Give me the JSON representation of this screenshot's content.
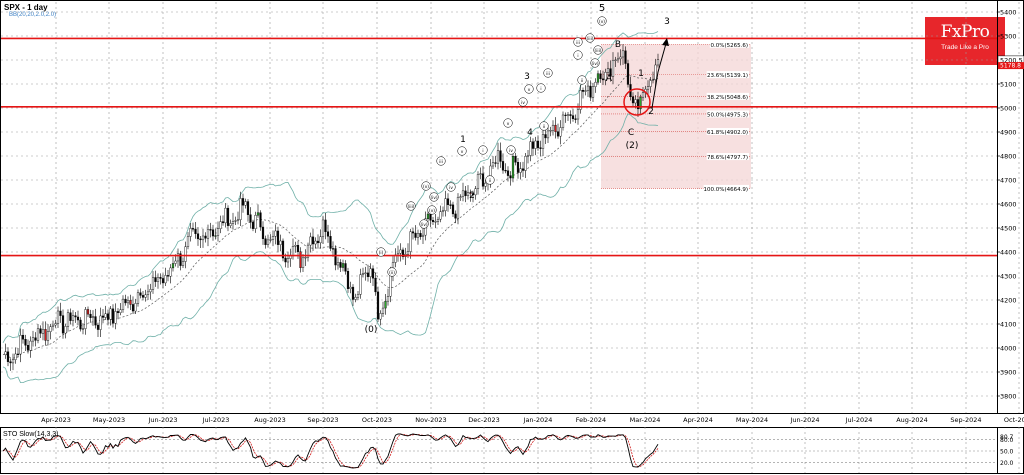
{
  "header": {
    "title": "SPX - 1 day",
    "indicator": "BB(20,20,2.0,2.0)"
  },
  "logo": {
    "name": "FxPro",
    "tagline": "Trade Like a Pro"
  },
  "sto": {
    "title": "STO Slow(14,3,3)",
    "levels": [
      "80.7",
      "80.0",
      "50.0",
      "20.0"
    ]
  },
  "chart_data": {
    "type": "candlestick",
    "title": "SPX - 1 day",
    "x_labels": [
      "Apr-2023",
      "May-2023",
      "Jun-2023",
      "Jul-2023",
      "Aug-2023",
      "Sep-2023",
      "Oct-2023",
      "Nov-2023",
      "Dec-2023",
      "Jan-2024",
      "Feb-2024",
      "Mar-2024",
      "Apr-2024",
      "May-2024",
      "Jun-2024",
      "Jul-2024",
      "Aug-2024",
      "Sep-2024",
      "Oct-2024"
    ],
    "y_ticks": [
      3800,
      3900,
      4000,
      4100,
      4200,
      4300,
      4400,
      4500,
      4600,
      4700,
      4800,
      4900,
      5000,
      5100,
      5200,
      5300,
      5400
    ],
    "ylim": [
      3740,
      5450
    ],
    "price_path": [
      [
        "Mar-2023",
        3950
      ],
      [
        "Apr-2023",
        4110
      ],
      [
        "May-2023",
        4130
      ],
      [
        "Jun-2023",
        4290
      ],
      [
        "Jun-2023",
        4440
      ],
      [
        "Jul-2023",
        4500
      ],
      [
        "Aug-2023",
        4580
      ],
      [
        "Aug-2023",
        4450
      ],
      [
        "Sep-2023",
        4380
      ],
      [
        "Sep-2023",
        4510
      ],
      [
        "Oct-2023",
        4360
      ],
      [
        "Oct-2023",
        4200
      ],
      [
        "Oct-2023",
        4380
      ],
      [
        "Nov-2023",
        4110
      ],
      [
        "Nov-2023",
        4370
      ],
      [
        "Dec-2023",
        4520
      ],
      [
        "Dec-2023",
        4600
      ],
      [
        "Jan-2024",
        4700
      ],
      [
        "Jan-2024",
        4800
      ],
      [
        "Jan-2024",
        4730
      ],
      [
        "Feb-2024",
        4850
      ],
      [
        "Feb-2024",
        5000
      ],
      [
        "Mar-2024",
        5100
      ],
      [
        "Mar-2024",
        5200
      ],
      [
        "Apr-2024",
        5260
      ],
      [
        "Apr-2024",
        5200
      ],
      [
        "Apr-2024",
        5040
      ],
      [
        "Apr-2024",
        4960
      ],
      [
        "May-2024",
        5080
      ],
      [
        "May-2024",
        5120
      ],
      [
        "May-2024",
        5220
      ]
    ],
    "resistance_lines": [
      5290,
      5005,
      4385
    ],
    "fibonacci": [
      {
        "label": "0.0%(5265.6)",
        "value": 5265.6
      },
      {
        "label": "23.6%(5139.1)",
        "value": 5139.1
      },
      {
        "label": "38.2%(5048.6)",
        "value": 5048.6
      },
      {
        "label": "50.0%(4975.3)",
        "value": 4975.3
      },
      {
        "label": "61.8%(4902.0)",
        "value": 4902.0
      },
      {
        "label": "78.6%(4797.7)",
        "value": 4797.7
      },
      {
        "label": "100.0%(4664.9)",
        "value": 4664.9
      }
    ],
    "price_labels": [
      "5200.5",
      "5178.8"
    ],
    "wave_labels": [
      "5",
      "(v)",
      "(iv)",
      "(iii)",
      "B",
      "A",
      "C",
      "(2)",
      "1",
      "2",
      "3",
      "4",
      "(0)",
      "(i)",
      "(ii)",
      "(iii)",
      "(iv)",
      "(v)",
      "i",
      "ii",
      "iii",
      "iv",
      "v"
    ]
  }
}
